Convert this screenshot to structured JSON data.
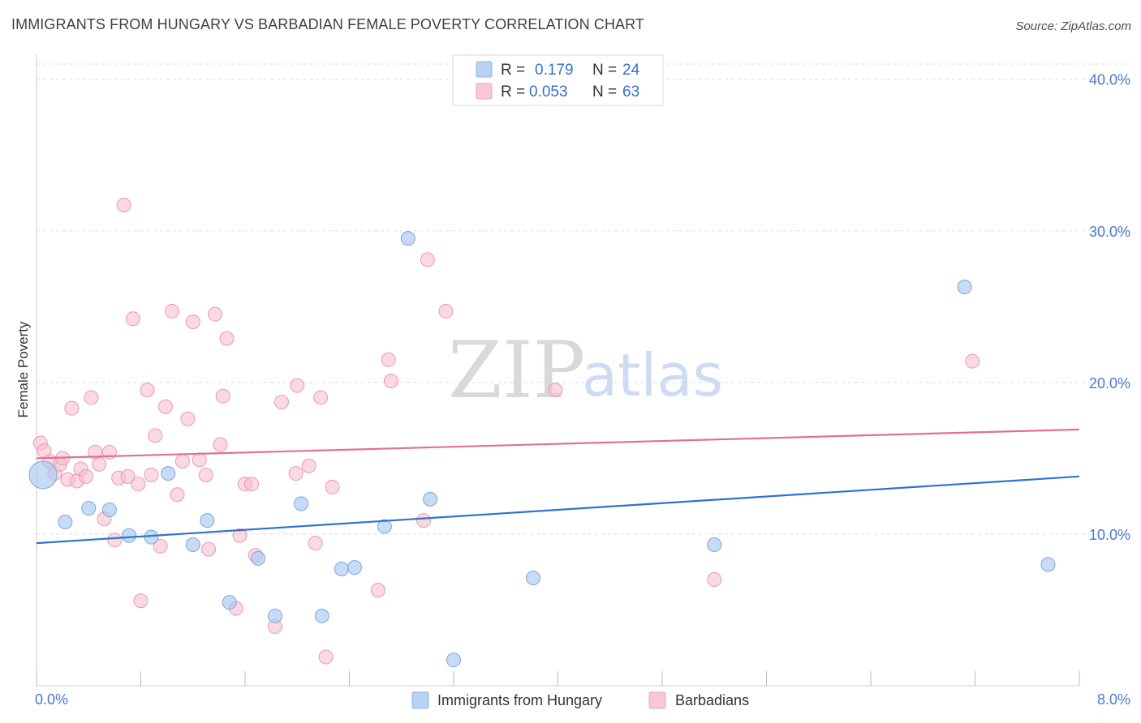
{
  "title": "IMMIGRANTS FROM HUNGARY VS BARBADIAN FEMALE POVERTY CORRELATION CHART",
  "source": "Source: ZipAtlas.com",
  "watermark": {
    "zip": "ZIP",
    "atlas": "atlas"
  },
  "legend_top": {
    "rows": [
      {
        "r_label": "R =",
        "r_value": "0.179",
        "n_label": "N =",
        "n_value": "24"
      },
      {
        "r_label": "R =",
        "r_value": "0.053",
        "n_label": "N =",
        "n_value": "63"
      }
    ]
  },
  "legend_bottom": [
    "Immigrants from Hungary",
    "Barbadians"
  ],
  "colors": {
    "blue_fill": "#aac8f0",
    "blue_stroke": "#7aa6e0",
    "blue_line": "#2f72d0",
    "pink_fill": "#f6b9cb",
    "pink_stroke": "#e99ab2",
    "pink_line": "#e07098",
    "grid": "#dddddd",
    "tick_label": "#4a7bc8"
  },
  "chart_data": {
    "type": "scatter",
    "title": "IMMIGRANTS FROM HUNGARY VS BARBADIAN FEMALE POVERTY CORRELATION CHART",
    "xlabel": "",
    "ylabel": "Female Poverty",
    "xlim": [
      0,
      8
    ],
    "ylim": [
      0,
      40
    ],
    "x_tick_labels": [
      "0.0%",
      "8.0%"
    ],
    "y_ticks": [
      10,
      20,
      30,
      40
    ],
    "y_tick_labels": [
      "10.0%",
      "20.0%",
      "30.0%",
      "40.0%"
    ],
    "grid": true,
    "legend_position": "top-center",
    "series": [
      {
        "name": "Immigrants from Hungary",
        "color": "#aac8f0",
        "r": 0.179,
        "n": 24,
        "trend": {
          "x": [
            0,
            8
          ],
          "y": [
            9.4,
            13.8
          ]
        },
        "points": [
          {
            "x": 0.05,
            "y": 13.9,
            "large": true
          },
          {
            "x": 0.22,
            "y": 10.8
          },
          {
            "x": 0.4,
            "y": 11.7
          },
          {
            "x": 0.56,
            "y": 11.6
          },
          {
            "x": 0.71,
            "y": 9.9
          },
          {
            "x": 0.88,
            "y": 9.8
          },
          {
            "x": 1.01,
            "y": 14.0
          },
          {
            "x": 1.2,
            "y": 9.3
          },
          {
            "x": 1.31,
            "y": 10.9
          },
          {
            "x": 1.48,
            "y": 5.5
          },
          {
            "x": 1.7,
            "y": 8.4
          },
          {
            "x": 1.83,
            "y": 4.6
          },
          {
            "x": 2.03,
            "y": 12.0
          },
          {
            "x": 2.19,
            "y": 4.6
          },
          {
            "x": 2.34,
            "y": 7.7
          },
          {
            "x": 2.44,
            "y": 7.8
          },
          {
            "x": 2.67,
            "y": 10.5
          },
          {
            "x": 2.85,
            "y": 29.5
          },
          {
            "x": 3.02,
            "y": 12.3
          },
          {
            "x": 3.2,
            "y": 1.7
          },
          {
            "x": 3.81,
            "y": 7.1
          },
          {
            "x": 5.2,
            "y": 9.3
          },
          {
            "x": 7.12,
            "y": 26.3
          },
          {
            "x": 7.76,
            "y": 8.0
          }
        ]
      },
      {
        "name": "Barbadians",
        "color": "#f6b9cb",
        "r": 0.053,
        "n": 63,
        "trend": {
          "x": [
            0,
            8
          ],
          "y": [
            15.0,
            16.9
          ]
        },
        "points": [
          {
            "x": 0.03,
            "y": 16.0
          },
          {
            "x": 0.06,
            "y": 15.5
          },
          {
            "x": 0.1,
            "y": 14.8
          },
          {
            "x": 0.14,
            "y": 14.0
          },
          {
            "x": 0.18,
            "y": 14.6
          },
          {
            "x": 0.2,
            "y": 15.0
          },
          {
            "x": 0.24,
            "y": 13.6
          },
          {
            "x": 0.27,
            "y": 18.3
          },
          {
            "x": 0.31,
            "y": 13.5
          },
          {
            "x": 0.34,
            "y": 14.3
          },
          {
            "x": 0.38,
            "y": 13.8
          },
          {
            "x": 0.42,
            "y": 19.0
          },
          {
            "x": 0.45,
            "y": 15.4
          },
          {
            "x": 0.48,
            "y": 14.6
          },
          {
            "x": 0.52,
            "y": 11.0
          },
          {
            "x": 0.56,
            "y": 15.4
          },
          {
            "x": 0.6,
            "y": 9.6
          },
          {
            "x": 0.63,
            "y": 13.7
          },
          {
            "x": 0.67,
            "y": 31.7
          },
          {
            "x": 0.7,
            "y": 13.8
          },
          {
            "x": 0.74,
            "y": 24.2
          },
          {
            "x": 0.78,
            "y": 13.3
          },
          {
            "x": 0.8,
            "y": 5.6
          },
          {
            "x": 0.85,
            "y": 19.5
          },
          {
            "x": 0.88,
            "y": 13.9
          },
          {
            "x": 0.91,
            "y": 16.5
          },
          {
            "x": 0.95,
            "y": 9.2
          },
          {
            "x": 0.99,
            "y": 18.4
          },
          {
            "x": 1.04,
            "y": 24.7
          },
          {
            "x": 1.08,
            "y": 12.6
          },
          {
            "x": 1.12,
            "y": 14.8
          },
          {
            "x": 1.16,
            "y": 17.6
          },
          {
            "x": 1.2,
            "y": 24.0
          },
          {
            "x": 1.25,
            "y": 14.9
          },
          {
            "x": 1.3,
            "y": 13.9
          },
          {
            "x": 1.32,
            "y": 9.0
          },
          {
            "x": 1.37,
            "y": 24.5
          },
          {
            "x": 1.41,
            "y": 15.9
          },
          {
            "x": 1.43,
            "y": 19.1
          },
          {
            "x": 1.46,
            "y": 22.9
          },
          {
            "x": 1.53,
            "y": 5.1
          },
          {
            "x": 1.56,
            "y": 9.9
          },
          {
            "x": 1.6,
            "y": 13.3
          },
          {
            "x": 1.65,
            "y": 13.3
          },
          {
            "x": 1.68,
            "y": 8.6
          },
          {
            "x": 1.83,
            "y": 3.9
          },
          {
            "x": 1.88,
            "y": 18.7
          },
          {
            "x": 1.99,
            "y": 14.0
          },
          {
            "x": 2.0,
            "y": 19.8
          },
          {
            "x": 2.09,
            "y": 14.5
          },
          {
            "x": 2.14,
            "y": 9.4
          },
          {
            "x": 2.18,
            "y": 19.0
          },
          {
            "x": 2.22,
            "y": 1.9
          },
          {
            "x": 2.27,
            "y": 13.1
          },
          {
            "x": 2.62,
            "y": 6.3
          },
          {
            "x": 2.7,
            "y": 21.5
          },
          {
            "x": 2.72,
            "y": 20.1
          },
          {
            "x": 2.97,
            "y": 10.9
          },
          {
            "x": 3.0,
            "y": 28.1
          },
          {
            "x": 3.14,
            "y": 24.7
          },
          {
            "x": 3.98,
            "y": 19.5
          },
          {
            "x": 5.2,
            "y": 7.0
          },
          {
            "x": 7.18,
            "y": 21.4
          }
        ]
      }
    ]
  }
}
